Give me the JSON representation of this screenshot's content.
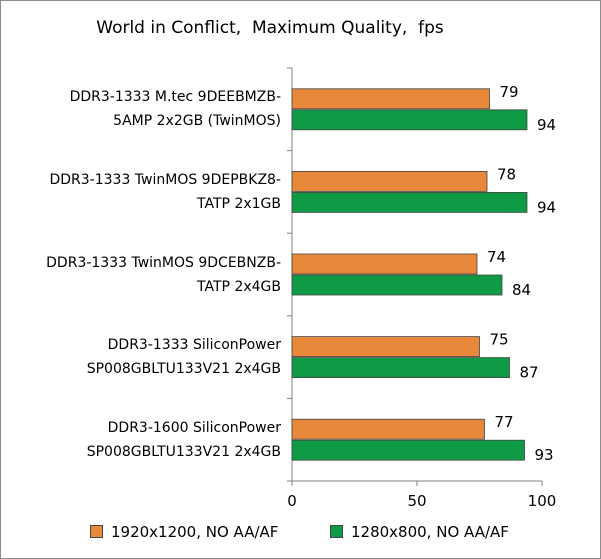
{
  "chart_data": {
    "type": "bar",
    "orientation": "horizontal",
    "title": "World in Conflict,  Maximum Quality,  fps",
    "categories": [
      [
        "DDR3-1333 M.tec 9DEEBMZB-",
        "5AMP 2x2GB (TwinMOS)"
      ],
      [
        "DDR3-1333 TwinMOS 9DEPBKZ8-",
        "TATP 2x1GB"
      ],
      [
        "DDR3-1333 TwinMOS 9DCEBNZB-",
        "TATP 2x4GB"
      ],
      [
        "DDR3-1333 SiliconPower",
        "SP008GBLTU133V21 2x4GB"
      ],
      [
        "DDR3-1600 SiliconPower",
        "SP008GBLTU133V21 2x4GB"
      ]
    ],
    "series": [
      {
        "name": "1920x1200, NO AA/AF",
        "values": [
          79,
          78,
          74,
          75,
          77
        ],
        "color": "#e8883a"
      },
      {
        "name": "1280x800, NO AA/AF",
        "values": [
          94,
          94,
          84,
          87,
          93
        ],
        "color": "#0e9a45"
      }
    ],
    "xlim": [
      0,
      100
    ],
    "xticks": [
      0,
      50,
      100
    ],
    "legend_position": "bottom",
    "grid": false
  }
}
